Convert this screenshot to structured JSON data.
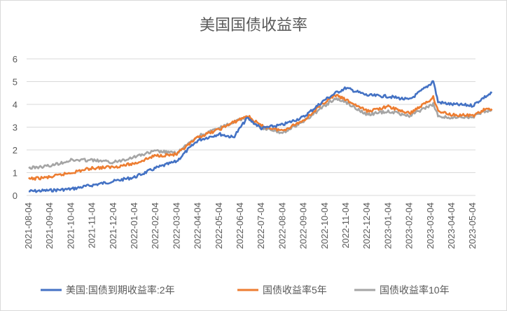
{
  "chart_data": {
    "type": "line",
    "title": "美国国债收益率",
    "xlabel": "",
    "ylabel": "",
    "ylim": [
      0,
      6
    ],
    "y_ticks": [
      "0",
      "1",
      "2",
      "3",
      "4",
      "5",
      "6"
    ],
    "x_tick_labels": [
      "2021-08-04",
      "2021-09-04",
      "2021-10-04",
      "2021-11-04",
      "2021-12-04",
      "2022-01-04",
      "2022-02-04",
      "2022-03-04",
      "2022-04-04",
      "2022-05-04",
      "2022-06-04",
      "2022-07-04",
      "2022-08-04",
      "2022-09-04",
      "2022-10-04",
      "2022-11-04",
      "2022-12-04",
      "2023-01-04",
      "2023-02-04",
      "2023-03-04",
      "2023-04-04",
      "2023-05-04"
    ],
    "grid": true,
    "legend_position": "bottom",
    "colors": {
      "series_2y": "#4472c4",
      "series_5y": "#ed7d31",
      "series_10y": "#a5a5a5",
      "grid": "#d9d9d9",
      "text": "#595959"
    },
    "series": [
      {
        "name": "美国:国债到期收益率:2年",
        "points": [
          [
            "2021-08-04",
            0.18
          ],
          [
            "2021-09-04",
            0.22
          ],
          [
            "2021-10-04",
            0.28
          ],
          [
            "2021-11-04",
            0.45
          ],
          [
            "2021-12-04",
            0.62
          ],
          [
            "2022-01-04",
            0.8
          ],
          [
            "2022-02-04",
            1.2
          ],
          [
            "2022-03-04",
            1.5
          ],
          [
            "2022-03-20",
            2.0
          ],
          [
            "2022-04-04",
            2.42
          ],
          [
            "2022-05-04",
            2.7
          ],
          [
            "2022-05-25",
            2.55
          ],
          [
            "2022-06-14",
            3.4
          ],
          [
            "2022-07-04",
            2.95
          ],
          [
            "2022-08-04",
            3.1
          ],
          [
            "2022-09-04",
            3.45
          ],
          [
            "2022-10-04",
            4.2
          ],
          [
            "2022-10-20",
            4.5
          ],
          [
            "2022-11-04",
            4.72
          ],
          [
            "2022-12-04",
            4.4
          ],
          [
            "2023-01-04",
            4.35
          ],
          [
            "2023-02-04",
            4.2
          ],
          [
            "2023-03-04",
            4.9
          ],
          [
            "2023-03-08",
            5.05
          ],
          [
            "2023-03-15",
            4.1
          ],
          [
            "2023-04-04",
            4.0
          ],
          [
            "2023-05-04",
            3.95
          ],
          [
            "2023-05-20",
            4.3
          ],
          [
            "2023-06-01",
            4.5
          ]
        ]
      },
      {
        "name": "国债收益率5年",
        "points": [
          [
            "2021-08-04",
            0.72
          ],
          [
            "2021-09-04",
            0.8
          ],
          [
            "2021-10-04",
            1.0
          ],
          [
            "2021-11-04",
            1.2
          ],
          [
            "2021-12-04",
            1.25
          ],
          [
            "2022-01-04",
            1.4
          ],
          [
            "2022-02-04",
            1.75
          ],
          [
            "2022-03-04",
            1.8
          ],
          [
            "2022-04-04",
            2.55
          ],
          [
            "2022-05-04",
            2.9
          ],
          [
            "2022-06-14",
            3.5
          ],
          [
            "2022-07-04",
            3.05
          ],
          [
            "2022-08-04",
            2.85
          ],
          [
            "2022-09-04",
            3.3
          ],
          [
            "2022-10-04",
            4.1
          ],
          [
            "2022-10-20",
            4.4
          ],
          [
            "2022-11-04",
            4.2
          ],
          [
            "2022-12-04",
            3.7
          ],
          [
            "2023-01-04",
            3.9
          ],
          [
            "2023-02-04",
            3.6
          ],
          [
            "2023-03-04",
            4.2
          ],
          [
            "2023-03-08",
            4.35
          ],
          [
            "2023-03-15",
            3.7
          ],
          [
            "2023-04-04",
            3.55
          ],
          [
            "2023-05-04",
            3.5
          ],
          [
            "2023-05-20",
            3.75
          ],
          [
            "2023-06-01",
            3.8
          ]
        ]
      },
      {
        "name": "国债收益率10年",
        "points": [
          [
            "2021-08-04",
            1.2
          ],
          [
            "2021-09-04",
            1.3
          ],
          [
            "2021-10-04",
            1.55
          ],
          [
            "2021-11-04",
            1.55
          ],
          [
            "2021-12-04",
            1.45
          ],
          [
            "2022-01-04",
            1.7
          ],
          [
            "2022-02-04",
            1.95
          ],
          [
            "2022-03-04",
            1.85
          ],
          [
            "2022-04-04",
            2.6
          ],
          [
            "2022-05-04",
            2.95
          ],
          [
            "2022-06-14",
            3.45
          ],
          [
            "2022-07-04",
            2.95
          ],
          [
            "2022-08-04",
            2.75
          ],
          [
            "2022-09-04",
            3.25
          ],
          [
            "2022-10-04",
            3.95
          ],
          [
            "2022-10-20",
            4.25
          ],
          [
            "2022-11-04",
            4.1
          ],
          [
            "2022-12-04",
            3.55
          ],
          [
            "2023-01-04",
            3.7
          ],
          [
            "2023-02-04",
            3.5
          ],
          [
            "2023-03-04",
            3.95
          ],
          [
            "2023-03-08",
            4.0
          ],
          [
            "2023-03-15",
            3.5
          ],
          [
            "2023-04-04",
            3.4
          ],
          [
            "2023-05-04",
            3.45
          ],
          [
            "2023-05-20",
            3.7
          ],
          [
            "2023-06-01",
            3.75
          ]
        ]
      }
    ]
  }
}
